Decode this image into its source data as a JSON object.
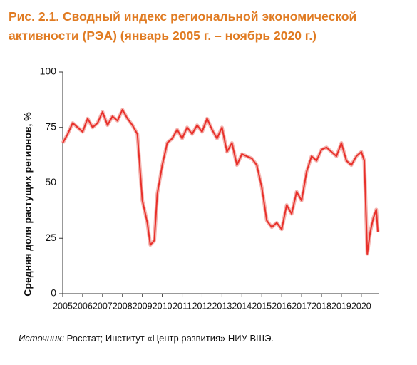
{
  "chart_data": {
    "type": "line",
    "title": "Рис. 2.1. Сводный индекс региональной экономической активности (РЭА) (январь 2005 г. – ноябрь 2020 г.)",
    "y_label": "Средняя доля растущих регионов, %",
    "source_label": "Источник:",
    "source_text": "Росстат; Институт «Центр развития» НИУ ВШЭ.",
    "x": [
      2005.0,
      2005.25,
      2005.5,
      2005.75,
      2006.0,
      2006.25,
      2006.5,
      2006.75,
      2007.0,
      2007.25,
      2007.5,
      2007.75,
      2008.0,
      2008.25,
      2008.5,
      2008.75,
      2009.0,
      2009.25,
      2009.4,
      2009.6,
      2009.75,
      2010.0,
      2010.25,
      2010.5,
      2010.75,
      2011.0,
      2011.25,
      2011.5,
      2011.75,
      2012.0,
      2012.25,
      2012.5,
      2012.75,
      2013.0,
      2013.25,
      2013.5,
      2013.75,
      2014.0,
      2014.25,
      2014.5,
      2014.75,
      2015.0,
      2015.25,
      2015.5,
      2015.75,
      2016.0,
      2016.25,
      2016.5,
      2016.75,
      2017.0,
      2017.25,
      2017.5,
      2017.75,
      2018.0,
      2018.25,
      2018.5,
      2018.75,
      2019.0,
      2019.25,
      2019.5,
      2019.75,
      2020.0,
      2020.15,
      2020.3,
      2020.45,
      2020.6,
      2020.75,
      2020.83
    ],
    "series": [
      {
        "name": "РЭА",
        "color": "#e8302a",
        "values": [
          68,
          72,
          77,
          75,
          73,
          79,
          75,
          77,
          82,
          76,
          80,
          78,
          83,
          79,
          76,
          72,
          42,
          32,
          22,
          24,
          45,
          58,
          68,
          70,
          74,
          70,
          75,
          72,
          76,
          73,
          79,
          74,
          70,
          75,
          64,
          68,
          58,
          63,
          62,
          61,
          58,
          48,
          33,
          30,
          32,
          29,
          40,
          36,
          46,
          42,
          55,
          62,
          60,
          65,
          66,
          64,
          62,
          68,
          60,
          58,
          62,
          64,
          60,
          18,
          28,
          34,
          38,
          28
        ]
      }
    ],
    "xlim": [
      2005,
      2020.9
    ],
    "xticks": [
      2005,
      2006,
      2007,
      2008,
      2009,
      2010,
      2011,
      2012,
      2013,
      2014,
      2015,
      2016,
      2017,
      2018,
      2019,
      2020
    ],
    "ylim": [
      0,
      100
    ],
    "yticks": [
      0,
      25,
      50,
      75,
      100
    ],
    "grid": false
  }
}
